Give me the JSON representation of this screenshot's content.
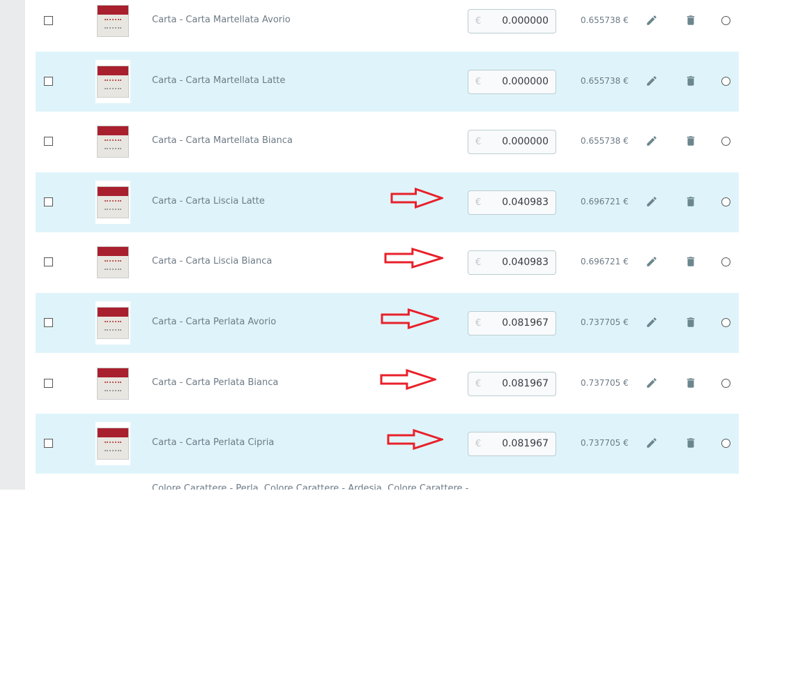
{
  "accent_row_color": "#dff4fa",
  "arrow_color": "#e8202a",
  "currency_symbol": "€",
  "rows": [
    {
      "name": "Carta - Carta Martellata Avorio",
      "impact": "0.000000",
      "final": "0.655738 €",
      "arrow": false
    },
    {
      "name": "Carta - Carta Martellata Latte",
      "impact": "0.000000",
      "final": "0.655738 €",
      "arrow": false
    },
    {
      "name": "Carta - Carta Martellata Bianca",
      "impact": "0.000000",
      "final": "0.655738 €",
      "arrow": false
    },
    {
      "name": "Carta - Carta Liscia Latte",
      "impact": "0.040983",
      "final": "0.696721 €",
      "arrow": true
    },
    {
      "name": "Carta - Carta Liscia Bianca",
      "impact": "0.040983",
      "final": "0.696721 €",
      "arrow": true
    },
    {
      "name": "Carta - Carta Perlata Avorio",
      "impact": "0.081967",
      "final": "0.737705 €",
      "arrow": true
    },
    {
      "name": "Carta - Carta Perlata Bianca",
      "impact": "0.081967",
      "final": "0.737705 €",
      "arrow": true
    },
    {
      "name": "Carta - Carta Perlata Cipria",
      "impact": "0.081967",
      "final": "0.737705 €",
      "arrow": true
    }
  ],
  "next_row_text": "Colore Carattere - Perla, Colore Carattere - Ardesia, Colore Carattere -"
}
